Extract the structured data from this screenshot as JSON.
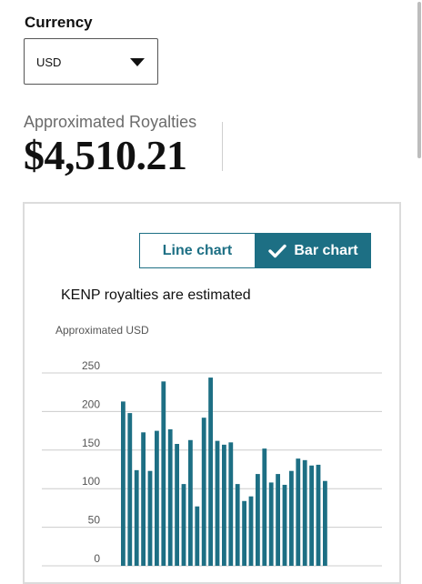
{
  "currency": {
    "label": "Currency",
    "selected": "USD"
  },
  "royalties": {
    "label": "Approximated Royalties",
    "value": "$4,510.21"
  },
  "chart_toggle": {
    "line_label": "Line chart",
    "bar_label": "Bar chart",
    "selected": "Bar chart"
  },
  "note": "KENP royalties are estimated",
  "colors": {
    "accent": "#1d6f84",
    "bar": "#1d6f84",
    "gridline": "#cccccc"
  },
  "chart_data": {
    "type": "bar",
    "ylabel": "Approximated USD",
    "yticks": [
      0,
      50,
      100,
      150,
      200,
      250
    ],
    "ylim": [
      0,
      250
    ],
    "grid": true,
    "values": [
      213,
      198,
      124,
      173,
      123,
      175,
      239,
      177,
      158,
      106,
      163,
      77,
      192,
      244,
      162,
      157,
      160,
      106,
      84,
      90,
      119,
      152,
      108,
      119,
      105,
      123,
      139,
      137,
      130,
      131,
      110
    ]
  }
}
